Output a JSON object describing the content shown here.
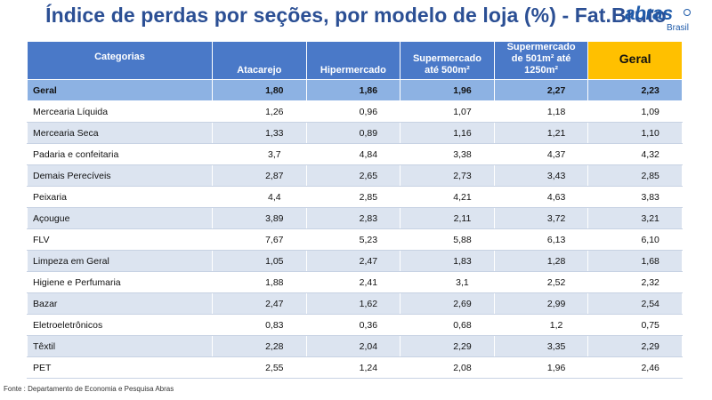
{
  "title": "Índice de perdas por seções, por modelo de loja (%) - Fat.Bruto",
  "logo": {
    "word": "abras",
    "sub": "Brasil"
  },
  "table": {
    "headers": [
      "Categorias",
      "Atacarejo",
      "Hipermercado",
      "Supermercado até 500m²",
      "Supermercado de 501m² até 1250m²",
      "Geral"
    ],
    "total_row": {
      "label": "Geral",
      "values": [
        "1,80",
        "1,86",
        "1,96",
        "2,27",
        "2,23"
      ]
    },
    "rows": [
      {
        "label": "Mercearia Líquida",
        "values": [
          "1,26",
          "0,96",
          "1,07",
          "1,18",
          "1,09"
        ]
      },
      {
        "label": "Mercearia Seca",
        "values": [
          "1,33",
          "0,89",
          "1,16",
          "1,21",
          "1,10"
        ]
      },
      {
        "label": "Padaria e confeitaria",
        "values": [
          "3,7",
          "4,84",
          "3,38",
          "4,37",
          "4,32"
        ]
      },
      {
        "label": "Demais Perecíveis",
        "values": [
          "2,87",
          "2,65",
          "2,73",
          "3,43",
          "2,85"
        ]
      },
      {
        "label": "Peixaria",
        "values": [
          "4,4",
          "2,85",
          "4,21",
          "4,63",
          "3,83"
        ]
      },
      {
        "label": "Açougue",
        "values": [
          "3,89",
          "2,83",
          "2,11",
          "3,72",
          "3,21"
        ]
      },
      {
        "label": "FLV",
        "values": [
          "7,67",
          "5,23",
          "5,88",
          "6,13",
          "6,10"
        ]
      },
      {
        "label": "Limpeza em Geral",
        "values": [
          "1,05",
          "2,47",
          "1,83",
          "1,28",
          "1,68"
        ]
      },
      {
        "label": "Higiene e Perfumaria",
        "values": [
          "1,88",
          "2,41",
          "3,1",
          "2,52",
          "2,32"
        ]
      },
      {
        "label": "Bazar",
        "values": [
          "2,47",
          "1,62",
          "2,69",
          "2,99",
          "2,54"
        ]
      },
      {
        "label": "Eletroeletrônicos",
        "values": [
          "0,83",
          "0,36",
          "0,68",
          "1,2",
          "0,75"
        ]
      },
      {
        "label": "Têxtil",
        "values": [
          "2,28",
          "2,04",
          "2,29",
          "3,35",
          "2,29"
        ]
      },
      {
        "label": "PET",
        "values": [
          "2,55",
          "1,24",
          "2,08",
          "1,96",
          "2,46"
        ]
      }
    ]
  },
  "footer": "Fonte : Departamento de Economia e Pesquisa Abras",
  "colors": {
    "title": "#2B4F94",
    "header_bg": "#4A79C8",
    "geral_header_bg": "#FFC000",
    "total_row_bg": "#8DB2E3",
    "band_row_bg": "#DCE4F0",
    "logo": "#1F5BAA"
  }
}
